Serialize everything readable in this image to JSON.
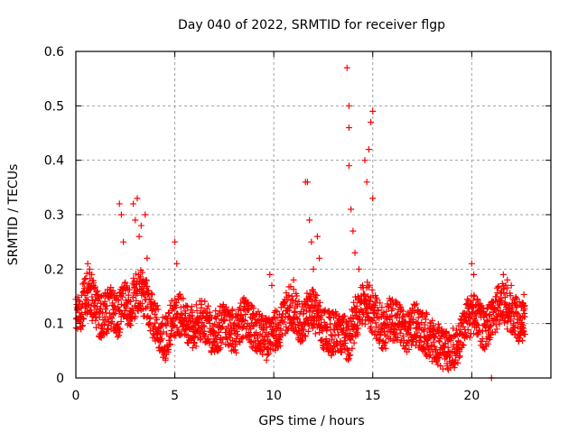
{
  "chart_data": {
    "type": "scatter",
    "title": "Day 040 of 2022, SRMTID for receiver flgp",
    "xlabel": "GPS time / hours",
    "ylabel": "SRMTID / TECUs",
    "xlim": [
      0,
      24
    ],
    "ylim": [
      0,
      0.6
    ],
    "xticks": [
      0,
      5,
      10,
      15,
      20
    ],
    "xtick_labels": [
      "0",
      "5",
      "10",
      "15",
      "20"
    ],
    "yticks": [
      0,
      0.1,
      0.2,
      0.3,
      0.4,
      0.5,
      0.6
    ],
    "ytick_labels": [
      "0",
      "0.1",
      "0.2",
      "0.3",
      "0.4",
      "0.5",
      "0.6"
    ],
    "grid": true,
    "legend": "none",
    "marker": "plus",
    "series": [
      {
        "name": "SRMTID",
        "color": "#ff0000",
        "trend": {
          "x": [
            0.0,
            0.3,
            0.6,
            0.9,
            1.2,
            1.5,
            1.8,
            2.1,
            2.4,
            2.7,
            3.0,
            3.3,
            3.6,
            3.9,
            4.2,
            4.5,
            4.8,
            5.1,
            5.4,
            5.7,
            6.0,
            6.3,
            6.6,
            6.9,
            7.2,
            7.5,
            7.8,
            8.1,
            8.4,
            8.7,
            9.0,
            9.3,
            9.6,
            9.9,
            10.2,
            10.5,
            10.8,
            11.1,
            11.4,
            11.7,
            12.0,
            12.3,
            12.6,
            12.9,
            13.2,
            13.5,
            13.8,
            14.1,
            14.4,
            14.7,
            15.0,
            15.3,
            15.6,
            15.9,
            16.2,
            16.5,
            16.8,
            17.1,
            17.4,
            17.7,
            18.0,
            18.3,
            18.6,
            18.9,
            19.2,
            19.5,
            19.8,
            20.1,
            20.4,
            20.7,
            21.0,
            21.3,
            21.6,
            21.9,
            22.2,
            22.5,
            22.7
          ],
          "y": [
            0.12,
            0.13,
            0.16,
            0.14,
            0.11,
            0.12,
            0.13,
            0.11,
            0.14,
            0.13,
            0.15,
            0.16,
            0.14,
            0.11,
            0.09,
            0.07,
            0.1,
            0.12,
            0.11,
            0.1,
            0.09,
            0.11,
            0.1,
            0.08,
            0.09,
            0.1,
            0.09,
            0.08,
            0.11,
            0.1,
            0.09,
            0.08,
            0.07,
            0.09,
            0.09,
            0.11,
            0.13,
            0.12,
            0.1,
            0.12,
            0.13,
            0.1,
            0.09,
            0.08,
            0.09,
            0.08,
            0.07,
            0.11,
            0.13,
            0.14,
            0.12,
            0.1,
            0.09,
            0.11,
            0.1,
            0.09,
            0.08,
            0.1,
            0.09,
            0.08,
            0.07,
            0.06,
            0.05,
            0.05,
            0.06,
            0.08,
            0.11,
            0.12,
            0.1,
            0.09,
            0.11,
            0.13,
            0.14,
            0.12,
            0.11,
            0.1,
            0.12
          ],
          "spread": 0.04
        },
        "outliers": {
          "x": [
            0.6,
            0.7,
            0.8,
            2.2,
            2.3,
            2.4,
            2.9,
            3.0,
            3.1,
            3.2,
            3.3,
            3.5,
            3.6,
            5.0,
            5.1,
            9.8,
            9.9,
            11.0,
            11.6,
            11.7,
            11.8,
            11.9,
            12.0,
            12.2,
            12.3,
            13.7,
            13.8,
            13.8,
            13.8,
            13.9,
            14.0,
            14.1,
            14.3,
            14.6,
            14.7,
            14.8,
            14.9,
            15.0,
            15.0,
            20.0,
            20.1,
            21.0,
            21.6,
            21.8,
            22.0
          ],
          "y": [
            0.21,
            0.2,
            0.19,
            0.32,
            0.3,
            0.25,
            0.32,
            0.29,
            0.33,
            0.26,
            0.28,
            0.3,
            0.22,
            0.25,
            0.21,
            0.19,
            0.17,
            0.18,
            0.36,
            0.36,
            0.29,
            0.25,
            0.2,
            0.26,
            0.22,
            0.57,
            0.5,
            0.46,
            0.39,
            0.31,
            0.27,
            0.23,
            0.2,
            0.4,
            0.36,
            0.42,
            0.47,
            0.49,
            0.33,
            0.21,
            0.19,
            0.0,
            0.19,
            0.18,
            0.17
          ]
        }
      }
    ]
  }
}
